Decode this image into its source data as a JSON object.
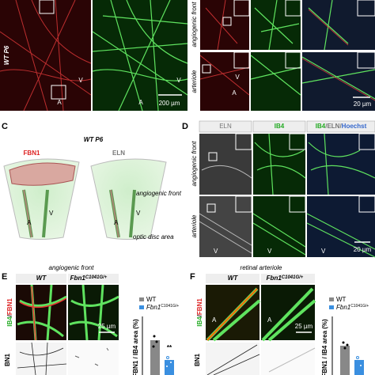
{
  "panel_a": {
    "condition": "WT P6",
    "labels": [
      "A",
      "V",
      "A",
      "V"
    ],
    "scale_bar": "200 µm"
  },
  "panel_b": {
    "rows": [
      "angiogenic front",
      "arteriole"
    ],
    "labels": [
      "A",
      "V"
    ],
    "scale_bar": "20 µm"
  },
  "panel_c": {
    "letter": "C",
    "title": "WT P6",
    "stains": [
      "FBN1",
      "ELN"
    ],
    "region": "angiogenic front",
    "base": "optic disc area",
    "vessel_labels": [
      "A",
      "V",
      "A",
      "V"
    ]
  },
  "panel_d": {
    "letter": "D",
    "columns": [
      "ELN",
      "IB4"
    ],
    "merge_label": [
      "IB4",
      "/ELN/",
      "Hoechst"
    ],
    "rows": [
      "angiogenic front",
      "arteriole"
    ],
    "labels": [
      "V",
      "V",
      "V"
    ],
    "scale_bar": "20 µm"
  },
  "panel_e": {
    "letter": "E",
    "title": "angiogenic front",
    "groups": [
      "WT",
      "Fbn1"
    ],
    "superscript": "C1041G/+",
    "stain": [
      "IB4",
      "/",
      "FBN1"
    ],
    "scale_bar": "25 µm",
    "legend": [
      "WT",
      "Fbn1"
    ],
    "y_label": "FBN1 / IB4 area (%)",
    "significance": "**",
    "bottom_stain": "BN1"
  },
  "panel_f": {
    "letter": "F",
    "title": "retinal arteriole",
    "groups": [
      "WT",
      "Fbn1"
    ],
    "superscript": "C1041G/+",
    "stain": [
      "IB4",
      "/",
      "FBN1"
    ],
    "labels": [
      "A",
      "A"
    ],
    "scale_bar": "25 µm",
    "legend": [
      "WT",
      "Fbn1"
    ],
    "y_label": "FBN1 / IB4 area (%)",
    "bottom_stain": "BN1"
  }
}
